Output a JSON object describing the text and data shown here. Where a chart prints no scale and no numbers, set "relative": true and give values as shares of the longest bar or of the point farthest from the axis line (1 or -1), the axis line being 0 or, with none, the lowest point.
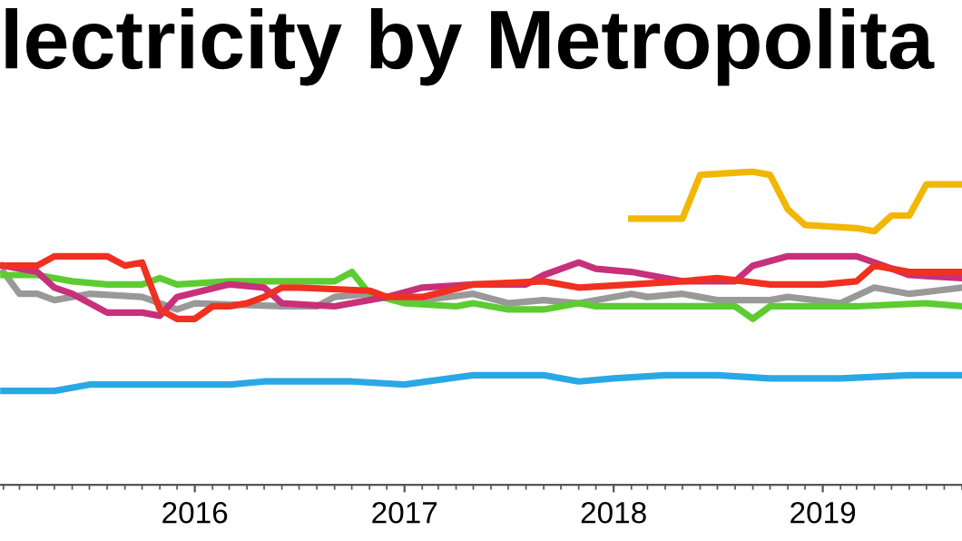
{
  "chart_data": {
    "type": "line",
    "title": "lectricity by Metropolita",
    "relative": true,
    "legend": false,
    "marker": "none",
    "line_style": "solid",
    "xlim": [
      "2015-01-26",
      "2019-09-01"
    ],
    "xticks": [
      {
        "value": "2016-01-01",
        "label": "2016"
      },
      {
        "value": "2017-01-01",
        "label": "2017"
      },
      {
        "value": "2018-01-01",
        "label": "2018"
      },
      {
        "value": "2019-01-01",
        "label": "2019"
      }
    ],
    "series": [
      {
        "color": "#2aa8e6",
        "x": [
          "2015-02",
          "2015-05",
          "2015-07",
          "2015-11",
          "2016-03",
          "2016-05",
          "2016-08",
          "2016-10",
          "2017-01",
          "2017-05",
          "2017-09",
          "2017-11",
          "2018-01",
          "2018-04",
          "2018-07",
          "2018-10",
          "2019-02",
          "2019-06",
          "2019-09"
        ],
        "values": [
          0.3,
          0.3,
          0.32,
          0.32,
          0.32,
          0.33,
          0.33,
          0.33,
          0.32,
          0.35,
          0.35,
          0.33,
          0.34,
          0.35,
          0.35,
          0.34,
          0.34,
          0.35,
          0.35
        ]
      },
      {
        "color": "#999999",
        "x": [
          "2015-02",
          "2015-03",
          "2015-04",
          "2015-05",
          "2015-07",
          "2015-10",
          "2015-12",
          "2016-01",
          "2016-06",
          "2016-08",
          "2016-09",
          "2016-11",
          "2016-12",
          "2017-02",
          "2017-05",
          "2017-07",
          "2017-09",
          "2017-11",
          "2018-02",
          "2018-03",
          "2018-05",
          "2018-07",
          "2018-10",
          "2018-11",
          "2019-02",
          "2019-04",
          "2019-06",
          "2019-09"
        ],
        "values": [
          0.68,
          0.61,
          0.61,
          0.59,
          0.61,
          0.6,
          0.56,
          0.58,
          0.57,
          0.57,
          0.6,
          0.61,
          0.6,
          0.59,
          0.61,
          0.58,
          0.59,
          0.58,
          0.61,
          0.6,
          0.61,
          0.59,
          0.59,
          0.6,
          0.58,
          0.63,
          0.61,
          0.63
        ]
      },
      {
        "color": "#5ccc32",
        "x": [
          "2015-02",
          "2015-04",
          "2015-06",
          "2015-08",
          "2015-10",
          "2015-11",
          "2015-12",
          "2016-03",
          "2016-09",
          "2016-10",
          "2016-11",
          "2017-01",
          "2017-04",
          "2017-05",
          "2017-07",
          "2017-09",
          "2017-11",
          "2017-12",
          "2018-03",
          "2018-06",
          "2018-08",
          "2018-09",
          "2018-10",
          "2019-03",
          "2019-07",
          "2019-09"
        ],
        "values": [
          0.67,
          0.67,
          0.65,
          0.64,
          0.64,
          0.66,
          0.64,
          0.65,
          0.65,
          0.68,
          0.61,
          0.58,
          0.57,
          0.58,
          0.56,
          0.56,
          0.58,
          0.57,
          0.57,
          0.57,
          0.57,
          0.53,
          0.57,
          0.57,
          0.58,
          0.57
        ]
      },
      {
        "color": "#f2b705",
        "x": [
          "2018-02",
          "2018-05",
          "2018-06",
          "2018-09",
          "2018-10",
          "2018-11",
          "2018-12",
          "2019-03",
          "2019-04",
          "2019-05",
          "2019-06",
          "2019-07",
          "2019-09"
        ],
        "values": [
          0.85,
          0.85,
          0.99,
          1.0,
          0.99,
          0.88,
          0.83,
          0.82,
          0.81,
          0.86,
          0.86,
          0.96,
          0.96
        ]
      },
      {
        "color": "#c8307a",
        "x": [
          "2015-02",
          "2015-04",
          "2015-05",
          "2015-06",
          "2015-08",
          "2015-10",
          "2015-11",
          "2015-12",
          "2016-03",
          "2016-05",
          "2016-06",
          "2016-09",
          "2016-12",
          "2017-02",
          "2017-05",
          "2017-08",
          "2017-09",
          "2017-11",
          "2017-12",
          "2018-02",
          "2018-05",
          "2018-08",
          "2018-09",
          "2018-11",
          "2019-03",
          "2019-04",
          "2019-06",
          "2019-09"
        ],
        "values": [
          0.7,
          0.68,
          0.63,
          0.61,
          0.55,
          0.55,
          0.54,
          0.6,
          0.64,
          0.63,
          0.58,
          0.57,
          0.6,
          0.63,
          0.64,
          0.64,
          0.67,
          0.71,
          0.69,
          0.68,
          0.65,
          0.65,
          0.7,
          0.73,
          0.73,
          0.71,
          0.67,
          0.66
        ]
      },
      {
        "color": "#f03020",
        "x": [
          "2015-02",
          "2015-04",
          "2015-05",
          "2015-08",
          "2015-09",
          "2015-10",
          "2015-11",
          "2015-12",
          "2016-01",
          "2016-02",
          "2016-03",
          "2016-04",
          "2016-05",
          "2016-06",
          "2016-07",
          "2016-11",
          "2016-12",
          "2017-02",
          "2017-05",
          "2017-09",
          "2017-11",
          "2018-02",
          "2018-05",
          "2018-07",
          "2018-10",
          "2019-01",
          "2019-03",
          "2019-04",
          "2019-06",
          "2019-09"
        ],
        "values": [
          0.7,
          0.7,
          0.73,
          0.73,
          0.7,
          0.71,
          0.56,
          0.53,
          0.53,
          0.57,
          0.57,
          0.58,
          0.6,
          0.63,
          0.63,
          0.62,
          0.6,
          0.6,
          0.64,
          0.65,
          0.63,
          0.64,
          0.65,
          0.66,
          0.64,
          0.64,
          0.65,
          0.7,
          0.68,
          0.68
        ]
      }
    ]
  }
}
